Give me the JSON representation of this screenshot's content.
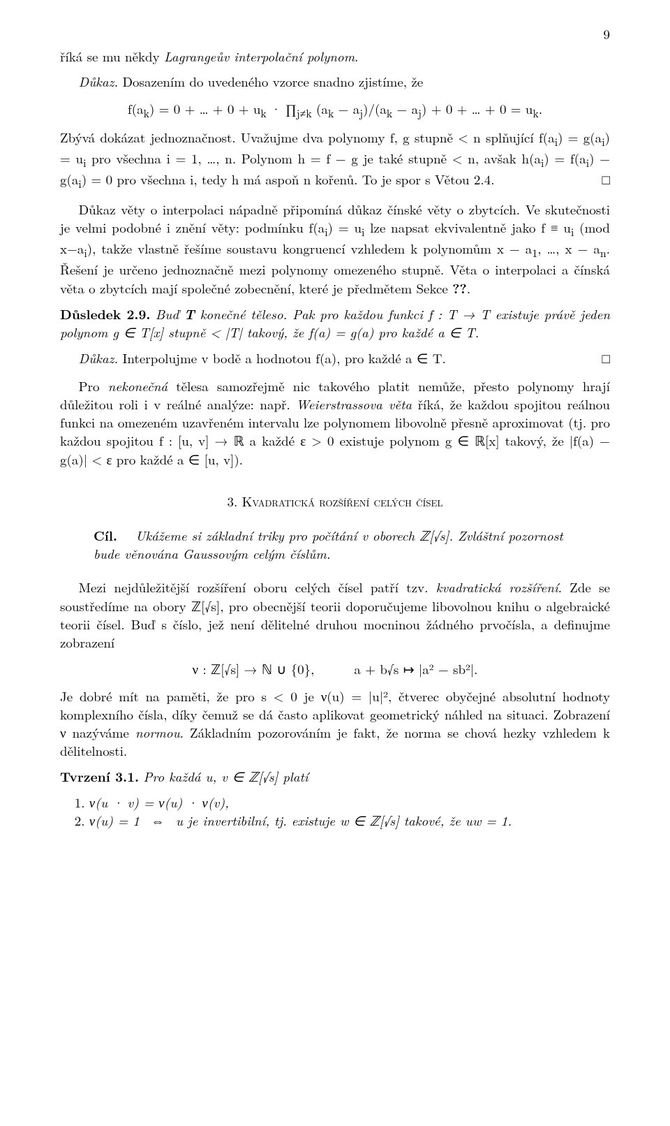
{
  "page_number": "9",
  "para1": "říká se mu někdy <i>Lagrangeův interpolační polynom</i>.",
  "proof1_label": "Důkaz.",
  "proof1_text": "Dosazením do uvedeného vzorce snadno zjistíme, že",
  "formula1": "f(a<sub>k</sub>) = 0 + … + 0 + u<sub>k</sub> · ∏<sub>j≠k</sub> (a<sub>k</sub> − a<sub>j</sub>)/(a<sub>k</sub> − a<sub>j</sub>) + 0 + … + 0 = u<sub>k</sub>.",
  "proof1_b": "Zbývá dokázat jednoznačnost. Uvažujme dva polynomy f, g stupně &lt; n splňující f(a<sub>i</sub>) = g(a<sub>i</sub>) = u<sub>i</sub> pro všechna i = 1, …, n. Polynom h = f − g je také stupně &lt; n, avšak h(a<sub>i</sub>) = f(a<sub>i</sub>) − g(a<sub>i</sub>) = 0 pro všechna i, tedy h má aspoň n kořenů. To je spor s Větou 2.4.",
  "qed": "□",
  "para3": "Důkaz věty o interpolaci nápadně připomíná důkaz čínské věty o zbytcích. Ve skutečnosti je velmi podobné i znění věty: podmínku f(a<sub>i</sub>) = u<sub>i</sub> lze napsat ekvivalentně jako f ≡ u<sub>i</sub> (mod x−a<sub>i</sub>), takže vlastně řešíme soustavu kongruencí vzhledem k polynomům x − a<sub>1</sub>, …, x − a<sub>n</sub>. Řešení je určeno jednoznačně mezi polynomy omezeného stupně. Věta o interpolaci a čínská věta o zbytcích mají společné zobecnění, které je předmětem Sekce <b>??</b>.",
  "cor_label": "Důsledek 2.9.",
  "cor_text": "Buď <b>T</b> konečné těleso. Pak pro každou funkci f : T → T existuje právě jeden polynom g ∈ T[x] stupně &lt; |T| takový, že f(a) = g(a) pro každé a ∈ T.",
  "proof2_label": "Důkaz.",
  "proof2_text": "Interpolujme v bodě a hodnotou f(a), pro každé a ∈ T.",
  "para5": "Pro <i>nekonečná</i> tělesa samozřejmě nic takového platit nemůže, přesto polynomy hrají důležitou roli i v reálné analýze: např. <i>Weierstrassova věta</i> říká, že každou spojitou reálnou funkci na omezeném uzavřeném intervalu lze polynomem libovolně přesně aproximovat (tj. pro každou spojitou f : [u, v] → ℝ a každé ε &gt; 0 existuje polynom g ∈ ℝ[x] takový, že |f(a) − g(a)| &lt; ε pro každé a ∈ [u, v]).",
  "section_no": "3.",
  "section_title": "Kvadratická rozšíření celých čísel",
  "cil_label": "Cíl.",
  "cil_text": "Ukážeme si základní triky pro počítání v oborech ℤ[√s]. Zvláštní pozornost bude věnována Gaussovým celým číslům.",
  "para6": "Mezi nejdůležitější rozšíření oboru celých čísel patří tzv. <i>kvadratická rozšíření</i>. Zde se soustředíme na obory ℤ[√s], pro obecnější teorii doporučujeme libovolnou knihu o algebraické teorii čísel. Buď s číslo, jež není dělitelné druhou mocninou žádného prvočísla, a definujme zobrazení",
  "formula2": "ν : ℤ[√s] → ℕ ∪ {0},&nbsp;&nbsp;&nbsp;&nbsp;&nbsp;&nbsp;a + b√s ↦ |a² − sb²|.",
  "para7": "Je dobré mít na paměti, že pro s &lt; 0 je ν(u) = |u|², čtverec obyčejné absolutní hodnoty komplexního čísla, díky čemuž se dá často aplikovat geometrický náhled na situaci. Zobrazení ν nazýváme <i>normou</i>. Základním pozorováním je fakt, že norma se chová hezky vzhledem k dělitelnosti.",
  "thm_label": "Tvrzení 3.1.",
  "thm_text": "Pro každá u, v ∈ ℤ[√s] platí",
  "item1": "ν(u · v) = ν(u) · ν(v),",
  "item2": "ν(u) = 1 &nbsp;⇔&nbsp; u je invertibilní, tj. existuje w ∈ ℤ[√s] takové, že uw = 1."
}
